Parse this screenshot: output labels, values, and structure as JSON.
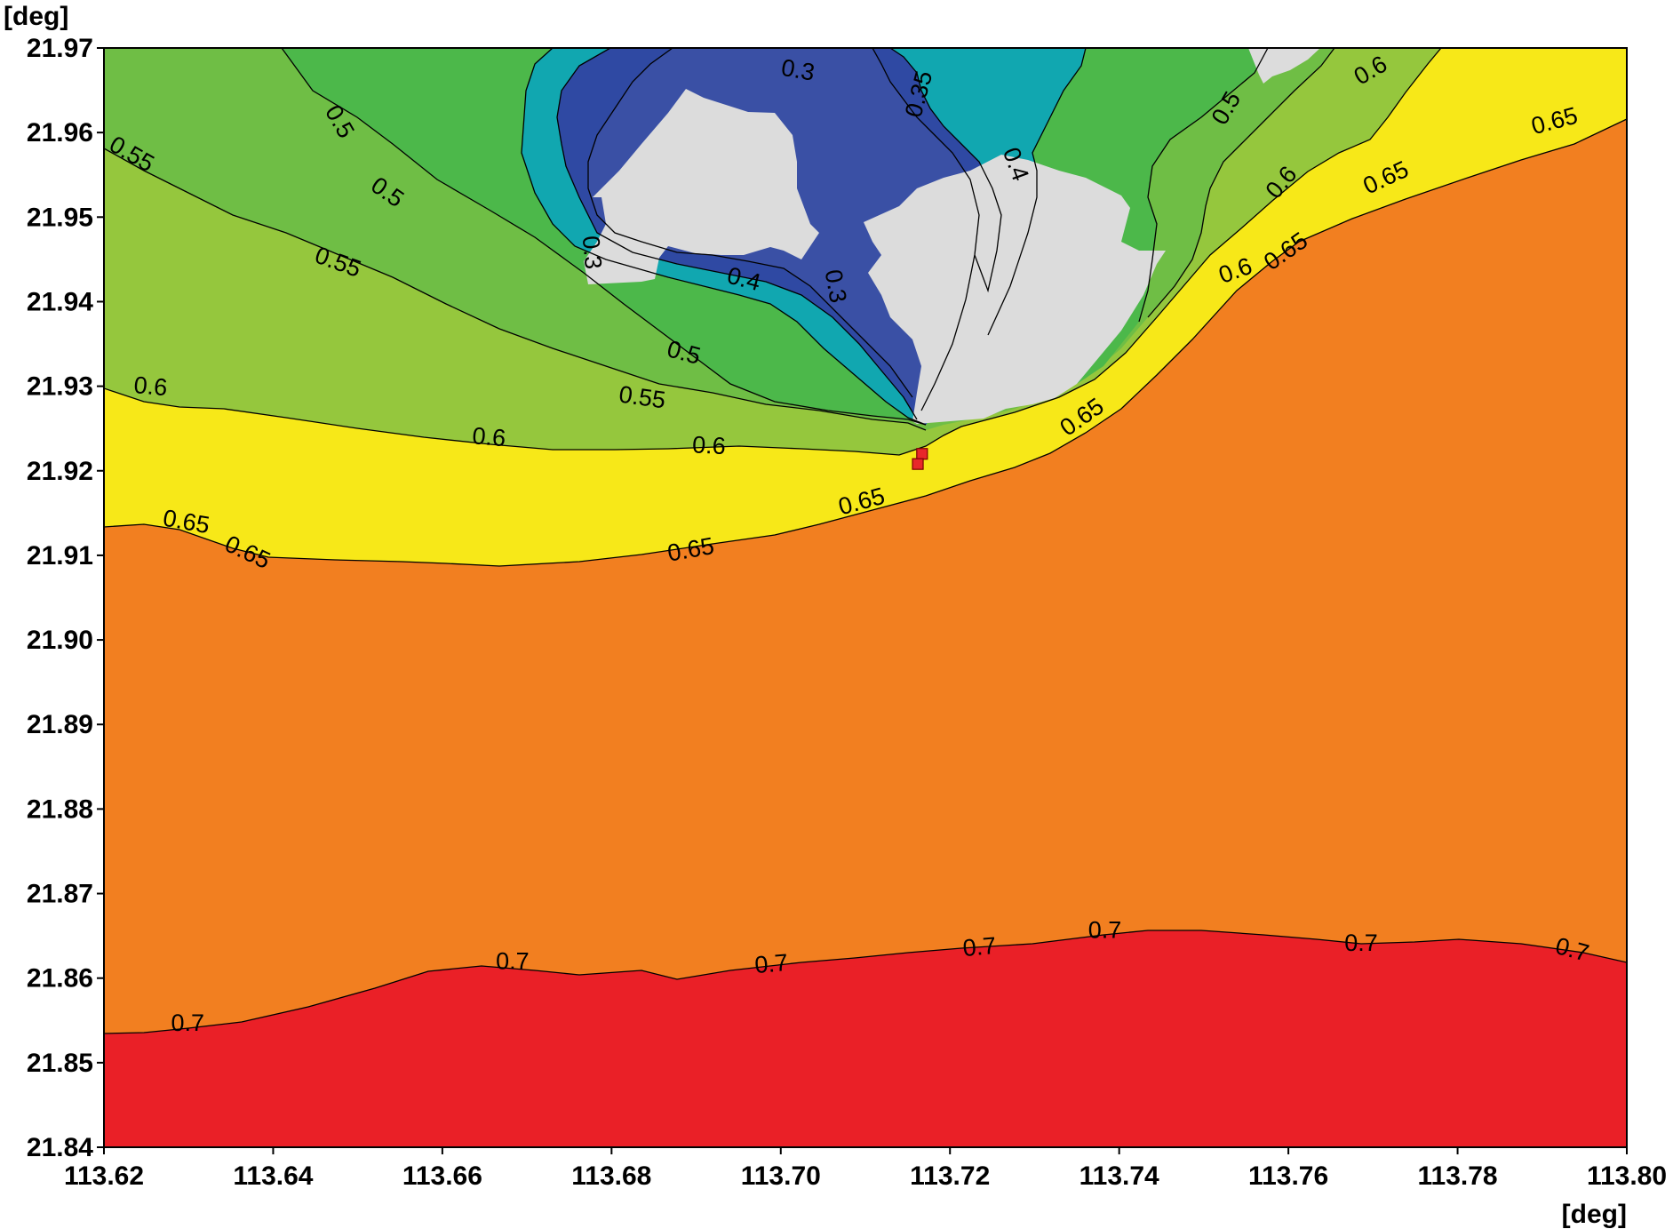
{
  "chart_data": {
    "type": "contour",
    "title": "",
    "xlabel": "[deg]",
    "ylabel": "[deg]",
    "xlim": [
      113.62,
      113.8
    ],
    "ylim": [
      21.84,
      21.97
    ],
    "x_ticks": [
      "113.62",
      "113.64",
      "113.66",
      "113.68",
      "113.70",
      "113.72",
      "113.74",
      "113.76",
      "113.78",
      "113.80"
    ],
    "y_ticks": [
      "21.84",
      "21.85",
      "21.86",
      "21.87",
      "21.88",
      "21.89",
      "21.90",
      "21.91",
      "21.92",
      "21.93",
      "21.94",
      "21.95",
      "21.96",
      "21.97"
    ],
    "levels": [
      0.3,
      0.35,
      0.4,
      0.5,
      0.55,
      0.6,
      0.65,
      0.7
    ],
    "colors": {
      "land": "#dcdcdc",
      "band_below_0.3": "#3a50a5",
      "band_0.35_0.4": "#11a7b0",
      "band_0.4_0.5": "#4cb84a",
      "band_0.5_0.55": "#6fbe45",
      "band_0.55_0.6": "#95c73d",
      "band_0.6_0.65": "#f7e818",
      "band_0.65_0.7": "#f27f20",
      "band_above_0.7": "#ea2027",
      "station_marker": "#e8282a"
    },
    "contour_labels": [
      {
        "text": "0.3",
        "x": 113.702,
        "y": 21.9672,
        "angle": 10
      },
      {
        "text": "0.35",
        "x": 113.7165,
        "y": 21.9645,
        "angle": -75
      },
      {
        "text": "0.4",
        "x": 113.7276,
        "y": 21.9562,
        "angle": 70
      },
      {
        "text": "0.3",
        "x": 113.6775,
        "y": 21.9458,
        "angle": 85
      },
      {
        "text": "0.4",
        "x": 113.6956,
        "y": 21.9425,
        "angle": 15
      },
      {
        "text": "0.3",
        "x": 113.7063,
        "y": 21.9418,
        "angle": 80
      },
      {
        "text": "0.5",
        "x": 113.6477,
        "y": 21.9612,
        "angle": 60
      },
      {
        "text": "0.5",
        "x": 113.6534,
        "y": 21.9528,
        "angle": 35
      },
      {
        "text": "0.55",
        "x": 113.6232,
        "y": 21.9573,
        "angle": 30
      },
      {
        "text": "0.55",
        "x": 113.6476,
        "y": 21.9445,
        "angle": 20
      },
      {
        "text": "0.5",
        "x": 113.6885,
        "y": 21.9338,
        "angle": 15
      },
      {
        "text": "0.55",
        "x": 113.6836,
        "y": 21.9285,
        "angle": 8
      },
      {
        "text": "0.6",
        "x": 113.6255,
        "y": 21.9298,
        "angle": 5
      },
      {
        "text": "0.6",
        "x": 113.6655,
        "y": 21.9238,
        "angle": 5
      },
      {
        "text": "0.6",
        "x": 113.6915,
        "y": 21.9228,
        "angle": 3
      },
      {
        "text": "0.5",
        "x": 113.7528,
        "y": 21.9628,
        "angle": -60
      },
      {
        "text": "0.6",
        "x": 113.7698,
        "y": 21.9672,
        "angle": -30
      },
      {
        "text": "0.6",
        "x": 113.7593,
        "y": 21.954,
        "angle": -50
      },
      {
        "text": "0.6",
        "x": 113.7538,
        "y": 21.9435,
        "angle": -20
      },
      {
        "text": "0.65",
        "x": 113.7915,
        "y": 21.9612,
        "angle": -15
      },
      {
        "text": "0.65",
        "x": 113.7716,
        "y": 21.9545,
        "angle": -25
      },
      {
        "text": "0.65",
        "x": 113.7598,
        "y": 21.9458,
        "angle": -35
      },
      {
        "text": "0.65",
        "x": 113.7357,
        "y": 21.9262,
        "angle": -35
      },
      {
        "text": "0.65",
        "x": 113.7096,
        "y": 21.9162,
        "angle": -15
      },
      {
        "text": "0.65",
        "x": 113.6894,
        "y": 21.9105,
        "angle": -10
      },
      {
        "text": "0.65",
        "x": 113.6297,
        "y": 21.9138,
        "angle": 10
      },
      {
        "text": "0.65",
        "x": 113.6369,
        "y": 21.9102,
        "angle": 25
      },
      {
        "text": "0.7",
        "x": 113.6299,
        "y": 21.8545,
        "angle": 0
      },
      {
        "text": "0.7",
        "x": 113.6683,
        "y": 21.8618,
        "angle": 0
      },
      {
        "text": "0.7",
        "x": 113.6989,
        "y": 21.8615,
        "angle": -5
      },
      {
        "text": "0.7",
        "x": 113.7235,
        "y": 21.8635,
        "angle": -5
      },
      {
        "text": "0.7",
        "x": 113.7383,
        "y": 21.8655,
        "angle": 0
      },
      {
        "text": "0.7",
        "x": 113.7686,
        "y": 21.864,
        "angle": 0
      },
      {
        "text": "0.7",
        "x": 113.7935,
        "y": 21.8632,
        "angle": 15
      }
    ],
    "station_markers": [
      {
        "x": 113.7167,
        "y": 21.922
      },
      {
        "x": 113.7162,
        "y": 21.9208
      }
    ]
  }
}
